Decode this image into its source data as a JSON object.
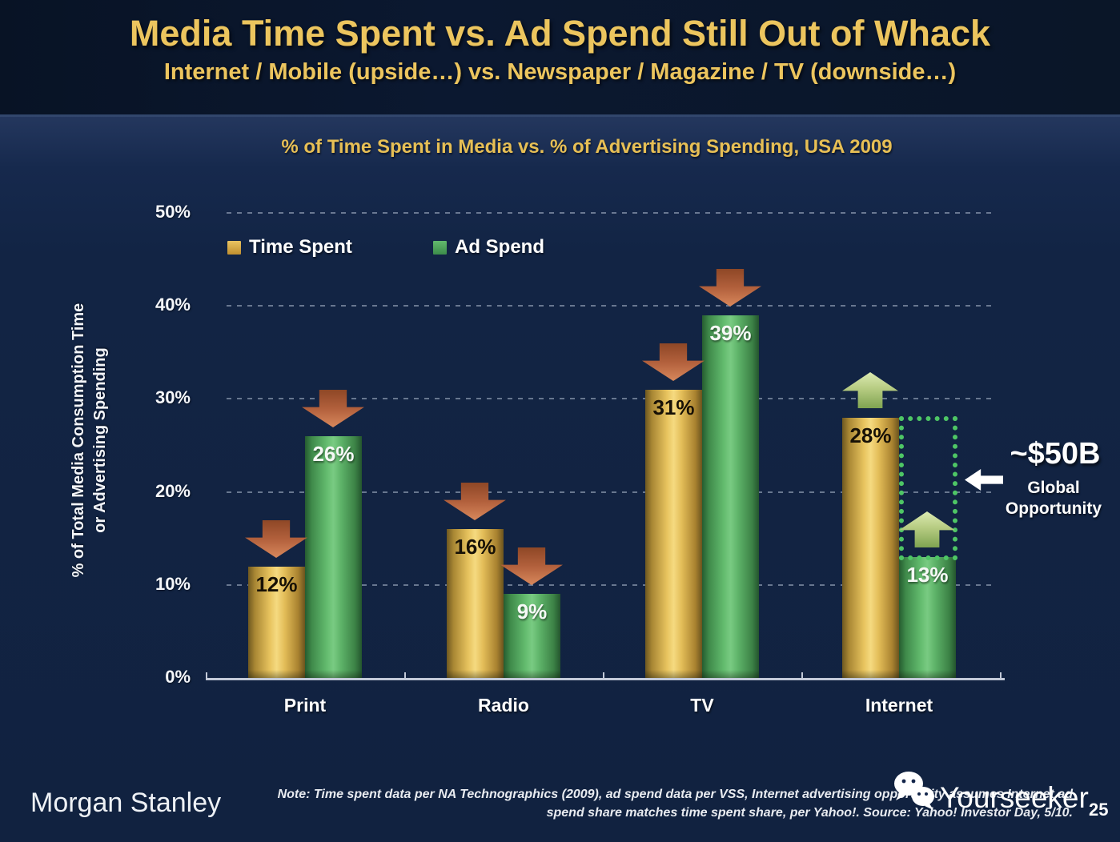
{
  "slide": {
    "title": "Media Time Spent vs. Ad Spend Still Out of Whack",
    "subtitle": "Internet / Mobile (upside…) vs. Newspaper / Magazine / TV (downside…)",
    "brand": "Morgan Stanley",
    "watermark": "Yourseeker",
    "page_number": "25",
    "note_line1": "Note: Time spent data per NA Technographics (2009), ad spend data per VSS, Internet advertising opportunity assumes Internet ad",
    "note_line2": "spend share matches time spent share, per Yahoo!. Source: Yahoo! Investor Day, 5/10."
  },
  "chart_data": {
    "type": "bar",
    "title": "% of Time Spent in Media vs. % of Advertising Spending, USA 2009",
    "categories": [
      "Print",
      "Radio",
      "TV",
      "Internet"
    ],
    "series": [
      {
        "name": "Time Spent",
        "color": "#d9a843",
        "values": [
          12,
          16,
          31,
          28
        ],
        "trend": [
          "down",
          "down",
          "down",
          "up"
        ]
      },
      {
        "name": "Ad Spend",
        "color": "#4fa85f",
        "values": [
          26,
          9,
          39,
          13
        ],
        "trend": [
          "down",
          "down",
          "down",
          "up"
        ]
      }
    ],
    "data_label_suffix": "%",
    "ylabel_line1": "% of Total Media Consumption Time",
    "ylabel_line2": "or Advertising Spending",
    "yticks": [
      0,
      10,
      20,
      30,
      40,
      50
    ],
    "ylim": [
      0,
      50
    ],
    "grid": "dashed-horizontal",
    "legend_position": "top-left",
    "annotation": {
      "value": "~$50B",
      "label": "Global Opportunity",
      "target": "gap between Internet time spent (28%) and Internet ad spend (13%)"
    }
  },
  "colors": {
    "background": "#122444",
    "title_band": "#0a1729",
    "title_gold": "#ecc55e",
    "bar_gold": "#d9a843",
    "bar_green": "#4fa85f",
    "down_arrow": "#c0663e",
    "up_arrow": "#a9c177",
    "opportunity_outline": "#4ec665",
    "baseline": "#c2c9d8"
  }
}
